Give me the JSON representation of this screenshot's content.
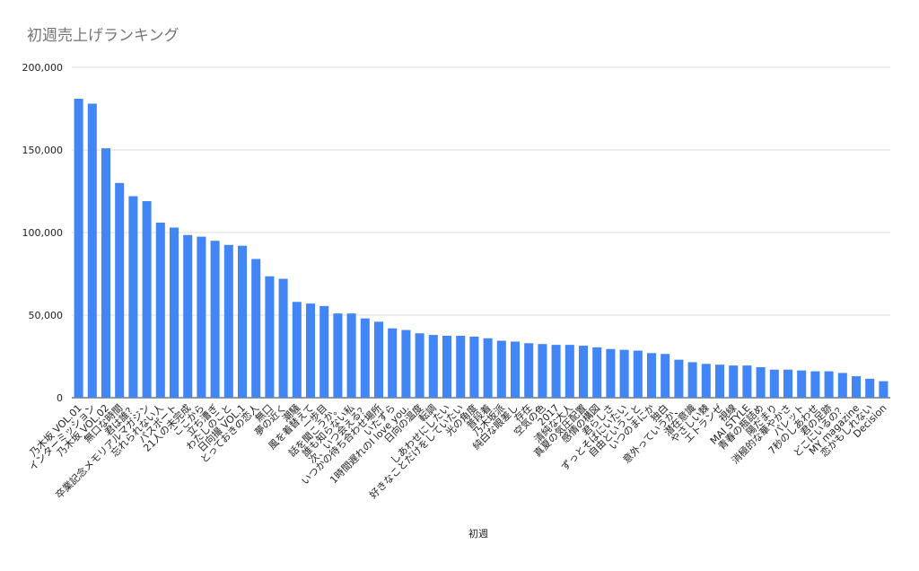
{
  "chart_data": {
    "type": "bar",
    "title": "初週売上げランキング",
    "x_label": "初週",
    "categories": [
      "乃木坂 VOL.01",
      "インターミッション",
      "乃木坂 VOL.02",
      "無口な時間",
      "君は誰？",
      "卒業記念メモリアルマガジン",
      "忘れられない人",
      "パスポート",
      "21人の未完成",
      "ここから",
      "立ち漕ぎ",
      "わたしのこと",
      "日向撮 VOL.1",
      "とっておきの恋人",
      "無口",
      "夢の近く",
      "潮騒",
      "風を着替えて",
      "一歩目",
      "話を聞こうか。",
      "誰も知らない私",
      "次、いつ会える？",
      "いつかの待ち合わせ場所",
      "いたずら",
      "1時間遅れのI love you.",
      "日向の温度",
      "転調",
      "しあわせにしたい",
      "好きなことだけをしていたい",
      "光の角度",
      "普段着",
      "乃木坂派",
      "純白な眼差し",
      "存在",
      "空気の色",
      "2017",
      "清純な大人",
      "真夏の気圧配置",
      "感情の構図",
      "君らしさ",
      "ずっとそばにいたい",
      "自由ということ",
      "いつのまにか",
      "独白",
      "意外っていうか、",
      "潜在意識",
      "やさしい棘",
      "エトランゼ",
      "視線",
      "MAI STYLE",
      "青春の瓶詰め",
      "陽だまり",
      "消極的な華やかさ",
      "パレット",
      "7秒のしあわせ",
      "君の足跡",
      "どこにいるの？",
      "MY magazine",
      "恋かもしれない",
      "Decision"
    ],
    "values": [
      181000,
      178000,
      151000,
      130000,
      122000,
      119000,
      106000,
      103000,
      98500,
      97500,
      95000,
      92500,
      92000,
      84000,
      73500,
      72000,
      58000,
      57000,
      55500,
      51000,
      51000,
      48000,
      46000,
      42000,
      41000,
      39000,
      38000,
      37500,
      37500,
      37000,
      36000,
      34500,
      34000,
      33000,
      32500,
      32000,
      32000,
      31500,
      30500,
      29500,
      29000,
      28500,
      27000,
      26500,
      23000,
      21500,
      20500,
      20000,
      19500,
      19500,
      18500,
      17000,
      17000,
      16500,
      16000,
      16000,
      15000,
      13000,
      11500,
      10000
    ],
    "color": "#4285f4",
    "ylim": [
      0,
      200000
    ],
    "yticks": [
      0,
      {
        "value": 50000,
        "label": "50,000"
      },
      {
        "value": 100000,
        "label": "100,000"
      },
      {
        "value": 150000,
        "label": "150,000"
      },
      {
        "value": 200000,
        "label": "200,000"
      }
    ],
    "grid": true
  }
}
